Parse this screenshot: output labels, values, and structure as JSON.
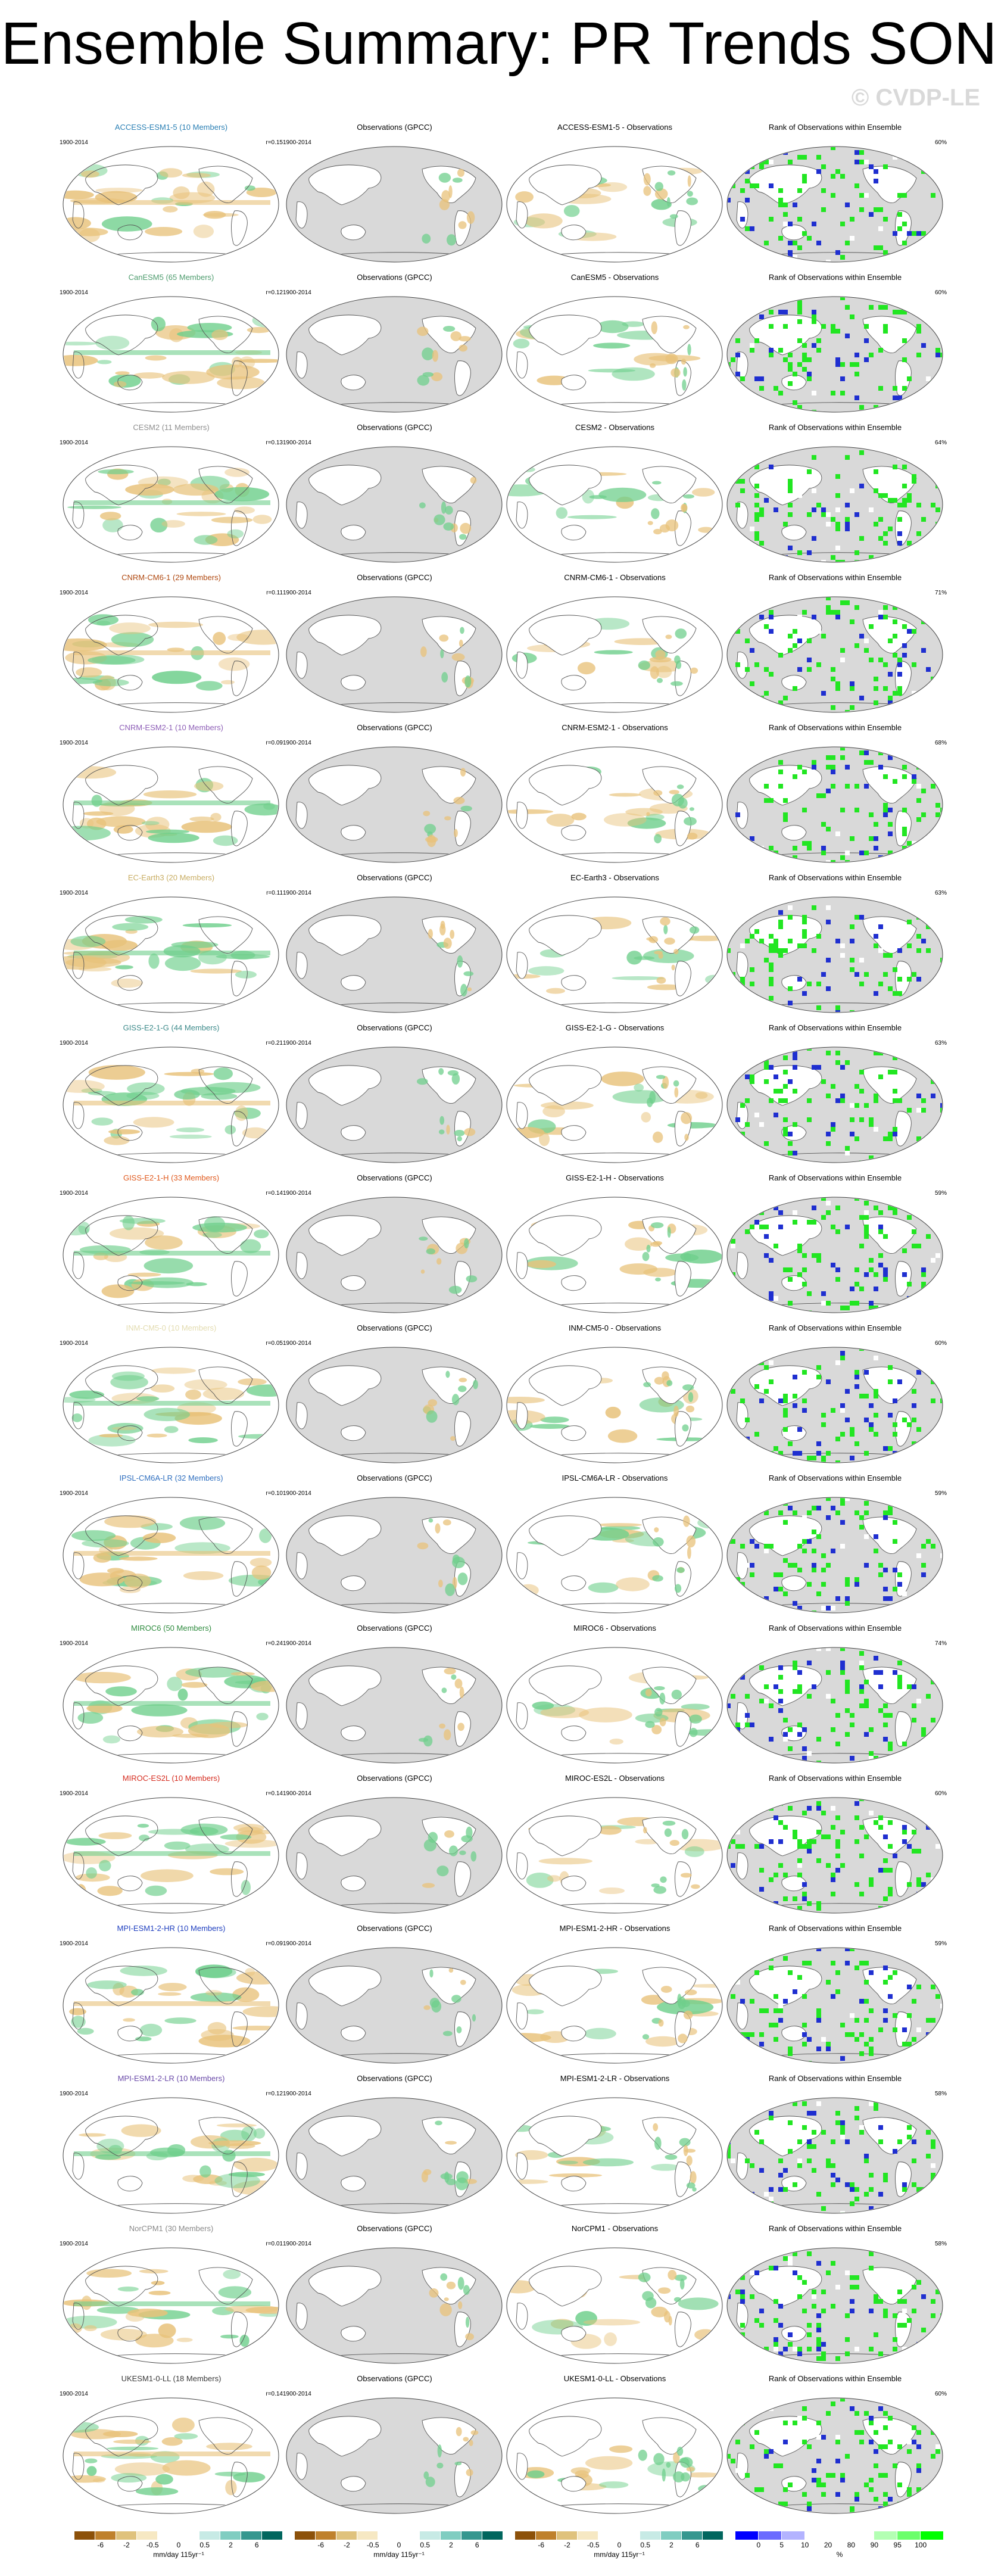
{
  "title": "Ensemble Summary: PR Trends SON",
  "watermark": "© CVDP-LE",
  "period": "1900-2014",
  "obs_title": "Observations (GPCC)",
  "rank_title": "Rank of Observations within Ensemble",
  "rows": [
    {
      "model": "ACCESS-ESM1-5 (10 Members)",
      "color": "#2a7fb4",
      "r": "r=0.15",
      "diff": "ACCESS-ESM1-5 - Observations",
      "pct": "60%"
    },
    {
      "model": "CanESM5 (65 Members)",
      "color": "#4e9c6e",
      "r": "r=0.12",
      "diff": "CanESM5 - Observations",
      "pct": "60%"
    },
    {
      "model": "CESM2 (11 Members)",
      "color": "#8f8f8f",
      "r": "r=0.13",
      "diff": "CESM2 - Observations",
      "pct": "64%"
    },
    {
      "model": "CNRM-CM6-1 (29 Members)",
      "color": "#b04a12",
      "r": "r=0.11",
      "diff": "CNRM-CM6-1 - Observations",
      "pct": "71%"
    },
    {
      "model": "CNRM-ESM2-1 (10 Members)",
      "color": "#8e5fb7",
      "r": "r=0.09",
      "diff": "CNRM-ESM2-1 - Observations",
      "pct": "68%"
    },
    {
      "model": "EC-Earth3 (20 Members)",
      "color": "#c8ad63",
      "r": "r=0.11",
      "diff": "EC-Earth3 - Observations",
      "pct": "63%"
    },
    {
      "model": "GISS-E2-1-G (44 Members)",
      "color": "#3d8a8a",
      "r": "r=0.21",
      "diff": "GISS-E2-1-G - Observations",
      "pct": "63%"
    },
    {
      "model": "GISS-E2-1-H (33 Members)",
      "color": "#e05a1e",
      "r": "r=0.14",
      "diff": "GISS-E2-1-H - Observations",
      "pct": "59%"
    },
    {
      "model": "INM-CM5-0 (10 Members)",
      "color": "#e3dcb0",
      "r": "r=0.05",
      "diff": "INM-CM5-0 - Observations",
      "pct": "60%"
    },
    {
      "model": "IPSL-CM6A-LR (32 Members)",
      "color": "#2f6fbf",
      "r": "r=0.10",
      "diff": "IPSL-CM6A-LR - Observations",
      "pct": "59%"
    },
    {
      "model": "MIROC6 (50 Members)",
      "color": "#2e8b3e",
      "r": "r=0.24",
      "diff": "MIROC6 - Observations",
      "pct": "74%"
    },
    {
      "model": "MIROC-ES2L (10 Members)",
      "color": "#d52b1e",
      "r": "r=0.14",
      "diff": "MIROC-ES2L - Observations",
      "pct": "60%"
    },
    {
      "model": "MPI-ESM1-2-HR (10 Members)",
      "color": "#1f3fbf",
      "r": "r=0.09",
      "diff": "MPI-ESM1-2-HR - Observations",
      "pct": "59%"
    },
    {
      "model": "MPI-ESM1-2-LR (10 Members)",
      "color": "#6a4aa8",
      "r": "r=0.12",
      "diff": "MPI-ESM1-2-LR - Observations",
      "pct": "58%"
    },
    {
      "model": "NorCPM1 (30 Members)",
      "color": "#8a8a8a",
      "r": "r=0.01",
      "diff": "NorCPM1 - Observations",
      "pct": "58%"
    },
    {
      "model": "UKESM1-0-LL (18 Members)",
      "color": "#3a3a3a",
      "r": "r=0.14",
      "diff": "UKESM1-0-LL - Observations",
      "pct": "60%"
    }
  ],
  "colorbars": [
    {
      "unit": "mm/day 115yr⁻¹",
      "ticks": [
        "-6",
        "-2",
        "-0.5",
        "0",
        "0.5",
        "2",
        "6"
      ],
      "colors": [
        "#8c510a",
        "#bf812d",
        "#dfc27d",
        "#f6e8c3",
        "#ffffff",
        "#ffffff",
        "#c7eae5",
        "#80cdc1",
        "#35978f",
        "#01665e"
      ]
    },
    {
      "unit": "mm/day 115yr⁻¹",
      "ticks": [
        "-6",
        "-2",
        "-0.5",
        "0",
        "0.5",
        "2",
        "6"
      ],
      "colors": [
        "#8c510a",
        "#bf812d",
        "#dfc27d",
        "#f6e8c3",
        "#ffffff",
        "#ffffff",
        "#c7eae5",
        "#80cdc1",
        "#35978f",
        "#01665e"
      ]
    },
    {
      "unit": "mm/day 115yr⁻¹",
      "ticks": [
        "-6",
        "-2",
        "-0.5",
        "0",
        "0.5",
        "2",
        "6"
      ],
      "colors": [
        "#8c510a",
        "#bf812d",
        "#dfc27d",
        "#f6e8c3",
        "#ffffff",
        "#ffffff",
        "#c7eae5",
        "#80cdc1",
        "#35978f",
        "#01665e"
      ]
    },
    {
      "unit": "%",
      "ticks": [
        "0",
        "5",
        "10",
        "20",
        "80",
        "90",
        "95",
        "100"
      ],
      "colors": [
        "#0000ff",
        "#6b6bff",
        "#b3b3ff",
        "#ffffff",
        "#ffffff",
        "#ffffff",
        "#b3ffb3",
        "#6bff6b",
        "#00ff00"
      ]
    }
  ],
  "colors": {
    "land": "#d9d9d9",
    "ocean": "#ffffff",
    "coast": "#555555",
    "green": "#6fcf8c",
    "tan": "#e8c27a",
    "blue": "#1f2fd0",
    "bright_green": "#22e622"
  }
}
